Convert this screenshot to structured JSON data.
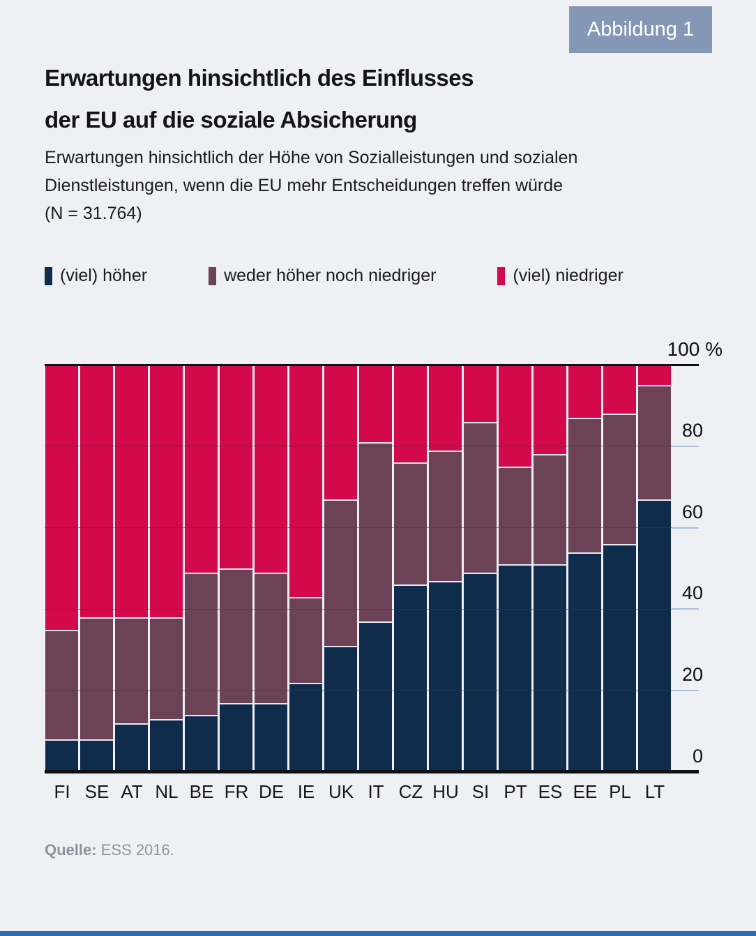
{
  "badge": {
    "label": "Abbildung 1"
  },
  "title": {
    "line1": "Erwartungen hinsichtlich des Einflusses",
    "line2": "der EU auf die soziale Absicherung"
  },
  "subtitle": {
    "line1": "Erwartungen hinsichtlich der Höhe von Sozialleistungen und sozialen",
    "line2": "Dienstleistungen, wenn die EU mehr Entscheidungen treffen würde",
    "line3": "(N = 31.764)"
  },
  "source": {
    "label": "Quelle:",
    "text": " ESS 2016."
  },
  "colors": {
    "background": "#eef0f4",
    "badge_bg": "#8497b5",
    "hoeher": "#0f2c4d",
    "weder": "#6c4257",
    "niedriger": "#d3094b",
    "tick_blue": "#a9bedd",
    "footer_strip": "#2f6cb3"
  },
  "chart_data": {
    "type": "bar",
    "stacked": true,
    "percent": true,
    "title": "Erwartungen hinsichtlich des Einflusses der EU auf die soziale Absicherung",
    "xlabel": "",
    "ylabel": "%",
    "ylim": [
      0,
      100
    ],
    "yticks": [
      0,
      20,
      40,
      60,
      80
    ],
    "ytick_top_label": "100 %",
    "grid": true,
    "legend_position": "top",
    "categories": [
      "FI",
      "SE",
      "AT",
      "NL",
      "BE",
      "FR",
      "DE",
      "IE",
      "UK",
      "IT",
      "CZ",
      "HU",
      "SI",
      "PT",
      "ES",
      "EE",
      "PL",
      "LT"
    ],
    "series": [
      {
        "name": "(viel) höher",
        "color": "#0f2c4d",
        "values": [
          8,
          8,
          12,
          13,
          14,
          17,
          17,
          22,
          31,
          37,
          46,
          47,
          49,
          51,
          51,
          54,
          56,
          67
        ]
      },
      {
        "name": "weder höher noch niedriger",
        "color": "#6c4257",
        "values": [
          27,
          30,
          26,
          25,
          35,
          33,
          32,
          21,
          36,
          44,
          30,
          32,
          37,
          24,
          27,
          33,
          32,
          28
        ]
      },
      {
        "name": "(viel) niedriger",
        "color": "#d3094b",
        "values": [
          65,
          62,
          62,
          62,
          51,
          50,
          51,
          57,
          33,
          19,
          24,
          21,
          14,
          25,
          22,
          13,
          12,
          5
        ]
      }
    ]
  }
}
